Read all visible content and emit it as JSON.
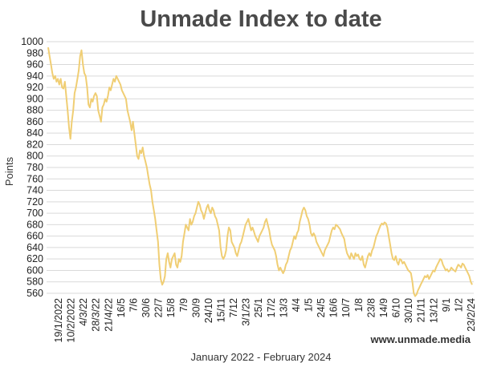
{
  "chart_data": {
    "type": "line",
    "title": "Unmade Index to date",
    "ylabel": "Points",
    "xlabel": "January 2022 - February 2024",
    "credit": "www.unmade.media",
    "ylim": [
      560,
      1000
    ],
    "yticks": [
      560,
      580,
      600,
      620,
      640,
      660,
      680,
      700,
      720,
      740,
      760,
      780,
      800,
      820,
      840,
      860,
      880,
      900,
      920,
      940,
      960,
      980,
      1000
    ],
    "grid": true,
    "line_color": "#f0ce74",
    "x_tick_labels": [
      "19/1/2022",
      "10/2/2022",
      "4/3/22",
      "28/3/22",
      "21/4/22",
      "16/5",
      "7/6",
      "30/6",
      "22/7",
      "15/8",
      "7/9",
      "30/9",
      "24/10",
      "15/11",
      "7/12",
      "3/1/23",
      "25/1",
      "17/2",
      "13/3",
      "4/4",
      "1/5",
      "24/5",
      "16/6",
      "10/7",
      "1/8",
      "23/8",
      "14/9",
      "6/10",
      "30/10",
      "21/11",
      "13/12",
      "9/1",
      "1/2",
      "23/2/24"
    ],
    "series": [
      {
        "values": [
          990,
          975,
          960,
          945,
          935,
          940,
          930,
          935,
          925,
          935,
          920,
          918,
          930,
          905,
          880,
          850,
          830,
          860,
          880,
          910,
          920,
          935,
          950,
          975,
          985,
          960,
          945,
          940,
          920,
          890,
          885,
          900,
          895,
          905,
          910,
          905,
          880,
          870,
          860,
          885,
          890,
          900,
          895,
          905,
          920,
          915,
          925,
          935,
          930,
          940,
          935,
          930,
          925,
          915,
          910,
          905,
          900,
          880,
          870,
          860,
          845,
          860,
          840,
          820,
          800,
          795,
          810,
          805,
          815,
          800,
          790,
          780,
          765,
          750,
          740,
          720,
          705,
          690,
          670,
          650,
          610,
          585,
          575,
          580,
          590,
          620,
          630,
          615,
          605,
          620,
          625,
          630,
          610,
          605,
          620,
          615,
          625,
          650,
          665,
          680,
          675,
          670,
          690,
          680,
          685,
          695,
          700,
          710,
          720,
          715,
          705,
          700,
          690,
          700,
          710,
          715,
          705,
          700,
          710,
          705,
          695,
          690,
          680,
          670,
          640,
          625,
          620,
          625,
          635,
          660,
          675,
          670,
          650,
          645,
          640,
          630,
          625,
          635,
          645,
          650,
          660,
          670,
          680,
          685,
          690,
          680,
          670,
          675,
          668,
          660,
          655,
          650,
          660,
          665,
          670,
          675,
          685,
          690,
          680,
          670,
          655,
          645,
          640,
          635,
          625,
          610,
          600,
          605,
          600,
          595,
          600,
          610,
          615,
          625,
          635,
          640,
          650,
          660,
          655,
          665,
          670,
          685,
          695,
          705,
          710,
          705,
          695,
          690,
          680,
          665,
          660,
          665,
          660,
          650,
          645,
          640,
          635,
          630,
          625,
          635,
          640,
          645,
          650,
          660,
          670,
          675,
          672,
          680,
          678,
          675,
          672,
          665,
          660,
          655,
          640,
          630,
          625,
          620,
          630,
          625,
          620,
          630,
          625,
          628,
          620,
          618,
          625,
          610,
          605,
          615,
          625,
          630,
          625,
          635,
          640,
          650,
          660,
          665,
          672,
          678,
          682,
          680,
          684,
          682,
          675,
          660,
          645,
          630,
          620,
          618,
          625,
          615,
          610,
          620,
          618,
          612,
          615,
          610,
          605,
          600,
          598,
          595,
          580,
          560,
          555,
          558,
          565,
          570,
          575,
          580,
          585,
          590,
          588,
          592,
          585,
          590,
          595,
          600,
          598,
          605,
          610,
          615,
          620,
          618,
          610,
          605,
          600,
          602,
          598,
          600,
          605,
          602,
          600,
          598,
          605,
          610,
          608,
          605,
          612,
          610,
          605,
          600,
          595,
          590,
          580,
          575
        ]
      }
    ]
  }
}
